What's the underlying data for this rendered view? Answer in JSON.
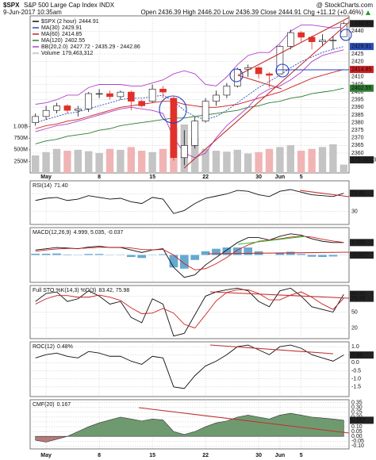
{
  "header": {
    "symbol": "$SPX",
    "name": "S&P 500 Large Cap Index INDX",
    "source": "@ StockCharts.com",
    "date": "9-Jun-2017 10:35am",
    "quote": "Open 2436.39 High 2446.20 Low 2436.39 Close 2444.91 Chg +11.12 (+0.46%)"
  },
  "chart_data": [
    {
      "type": "candlestick",
      "name": "$SPX (2 hour)",
      "categories": [
        null,
        "May",
        null,
        null,
        null,
        null,
        "8",
        null,
        null,
        null,
        null,
        "15",
        null,
        null,
        null,
        null,
        "22",
        null,
        null,
        null,
        null,
        "30",
        null,
        "Jun",
        null,
        "5",
        null,
        null,
        null,
        null
      ],
      "open": [
        2380,
        2384,
        2388,
        2391,
        2388,
        2389,
        2399,
        2399,
        2397,
        2400,
        2394,
        2394,
        2402,
        2396,
        2357,
        2365,
        2381,
        2394,
        2398,
        2404,
        2415,
        2416,
        2412,
        2412,
        2430,
        2439,
        2436,
        2433,
        2434,
        2436.39
      ],
      "high": [
        2386,
        2391,
        2393,
        2392,
        2391,
        2400,
        2402,
        2401,
        2401,
        2401,
        2395,
        2405,
        2404,
        2397,
        2375,
        2384,
        2396,
        2401,
        2406,
        2416,
        2418,
        2417,
        2413,
        2431,
        2441,
        2440,
        2437,
        2438,
        2437,
        2446.2
      ],
      "low": [
        2378,
        2382,
        2386,
        2386,
        2384,
        2387,
        2396,
        2395,
        2395,
        2388,
        2390,
        2393,
        2396,
        2355,
        2352,
        2363,
        2380,
        2391,
        2396,
        2403,
        2410,
        2409,
        2403,
        2412,
        2428,
        2433,
        2428,
        2430,
        2428,
        2436.39
      ],
      "close": [
        2384,
        2388,
        2391,
        2388,
        2389,
        2399,
        2399,
        2397,
        2400,
        2394,
        2391,
        2402,
        2400,
        2357,
        2365,
        2381,
        2394,
        2398,
        2404,
        2415,
        2416,
        2412,
        2411,
        2430,
        2439,
        2436,
        2433,
        2434,
        2434,
        2444.91
      ],
      "up_color": "#ffffff",
      "down_color": "#e0302a",
      "candle_stroke": "#111111",
      "box_color": "#222222",
      "ylim": [
        2347,
        2450
      ],
      "yticks": [
        2360,
        2365,
        2370,
        2375,
        2380,
        2385,
        2390,
        2395,
        2400,
        2405,
        2410,
        2420,
        2425,
        2440
      ],
      "grid": true,
      "series": [
        {
          "name": "MA(30)",
          "color": "#2a4cb8",
          "dash": "2,1.5",
          "value_box": true,
          "values": [
            2380,
            2382,
            2384,
            2386,
            2387,
            2389,
            2391,
            2393,
            2395,
            2396,
            2396,
            2397,
            2398,
            2394,
            2388,
            2384,
            2382,
            2384,
            2388,
            2393,
            2398,
            2403,
            2407,
            2411,
            2416,
            2420,
            2423,
            2426,
            2428,
            2429.91
          ]
        },
        {
          "name": "MA(60)",
          "color": "#cc2020",
          "value_box": true,
          "values": [
            2376,
            2378,
            2379,
            2381,
            2382,
            2384,
            2386,
            2388,
            2390,
            2391,
            2392,
            2393,
            2394,
            2394,
            2392,
            2391,
            2390,
            2390,
            2391,
            2392,
            2394,
            2396,
            2398,
            2400,
            2403,
            2406,
            2409,
            2411,
            2413,
            2414.85
          ]
        },
        {
          "name": "MA(120)",
          "color": "#2e7d32",
          "value_box": true,
          "values": [
            2366,
            2368,
            2369,
            2371,
            2372,
            2373,
            2375,
            2376,
            2378,
            2379,
            2380,
            2381,
            2382,
            2383,
            2383,
            2384,
            2385,
            2386,
            2387,
            2388,
            2390,
            2391,
            2393,
            2394,
            2396,
            2397,
            2399,
            2400,
            2401,
            2402.55
          ]
        },
        {
          "name": "BB(20,2.0)",
          "legend_value": "2427.72 - 2435.29 - 2442.86",
          "color": "#b040c8",
          "upper": [
            2392,
            2393,
            2395,
            2398,
            2398,
            2403,
            2405,
            2405,
            2405,
            2404,
            2404,
            2406,
            2408,
            2412,
            2414,
            2412,
            2405,
            2404,
            2410,
            2418,
            2424,
            2426,
            2426,
            2432,
            2440,
            2444,
            2444,
            2443,
            2442,
            2442.86
          ],
          "lower": [
            2374,
            2376,
            2378,
            2379,
            2381,
            2383,
            2385,
            2387,
            2389,
            2390,
            2389,
            2388,
            2386,
            2370,
            2360,
            2357,
            2360,
            2370,
            2378,
            2384,
            2390,
            2398,
            2402,
            2404,
            2408,
            2413,
            2420,
            2424,
            2426,
            2427.72
          ]
        }
      ],
      "volume": {
        "name": "Volume",
        "legend_value": "179,463,312",
        "axis": "y2",
        "up_color": "#c4c4c4",
        "down_color": "#f0b4b4",
        "values": [
          380000000,
          450000000,
          520000000,
          480000000,
          500000000,
          470000000,
          430000000,
          520000000,
          500000000,
          560000000,
          480000000,
          450000000,
          520000000,
          980000000,
          1050000000,
          760000000,
          520000000,
          480000000,
          460000000,
          500000000,
          420000000,
          450000000,
          520000000,
          560000000,
          600000000,
          480000000,
          520000000,
          560000000,
          620000000,
          179463312
        ]
      },
      "y2lim": [
        0,
        3400000000
      ],
      "y2ticks": [
        {
          "value": 250000000,
          "label": "250M"
        },
        {
          "value": 500000000,
          "label": "500M"
        },
        {
          "value": 750000000,
          "label": "750M"
        },
        {
          "value": 1000000000,
          "label": "1.00B"
        }
      ]
    },
    {
      "type": "line",
      "title": "RSI(14)",
      "legend_value": "71.40",
      "legend_box": true,
      "box_color": "#222222",
      "ylim": [
        0,
        100
      ],
      "yticks": [
        30,
        70
      ],
      "grid": true,
      "series": [
        {
          "color": "#111111",
          "values": [
            55,
            60,
            62,
            55,
            58,
            66,
            62,
            58,
            60,
            52,
            48,
            62,
            58,
            25,
            32,
            48,
            60,
            65,
            70,
            78,
            76,
            68,
            64,
            76,
            80,
            74,
            68,
            66,
            64,
            71.4
          ]
        }
      ]
    },
    {
      "type": "line",
      "title": "MACD(12,26,9)",
      "legend_value": "4.999, 5.035, -0.037",
      "box_color": "#222222",
      "ylim": [
        -11,
        11
      ],
      "yticks": [
        0
      ],
      "grid": true,
      "series": [
        {
          "style": "histogram",
          "color": "#4a9ac8",
          "value_box": true,
          "values": [
            0.5,
            0.5,
            0.6,
            0.2,
            -0.1,
            0.4,
            0.4,
            -0.1,
            -0.1,
            -0.8,
            -1.2,
            -0.1,
            0.3,
            -5,
            -5.5,
            -2,
            1.5,
            2.5,
            3,
            3,
            3,
            1.5,
            0,
            1,
            1.3,
            0.4,
            -0.7,
            -0.8,
            -0.6,
            -0.037
          ]
        },
        {
          "color": "#111111",
          "value_box": true,
          "values": [
            2,
            2.5,
            3,
            2.8,
            2.5,
            3.2,
            3.5,
            3,
            3,
            2,
            1,
            2,
            2.5,
            -5,
            -9,
            -8,
            -4,
            -1,
            2,
            5,
            7,
            7,
            6,
            7.5,
            8.5,
            8,
            6.5,
            5.5,
            5,
            4.999
          ]
        },
        {
          "color": "#cc2020",
          "values": [
            1.5,
            2,
            2.4,
            2.6,
            2.6,
            2.8,
            3.1,
            3.1,
            3.1,
            2.8,
            2.2,
            2.1,
            2.2,
            0,
            -3.5,
            -6,
            -5.5,
            -3.5,
            -1,
            2,
            4,
            5.5,
            6,
            6.5,
            7.2,
            7.6,
            7.2,
            6.3,
            5.6,
            5.035
          ]
        }
      ]
    },
    {
      "type": "line",
      "title": "Full STO %K(14,3) %D(3)",
      "legend_value": "83.42, 75.98",
      "box_color": "#222222",
      "ylim": [
        0,
        100
      ],
      "yticks": [
        20,
        50,
        80
      ],
      "grid": true,
      "series": [
        {
          "color": "#111111",
          "value_box": true,
          "values": [
            70,
            85,
            88,
            70,
            75,
            90,
            80,
            65,
            70,
            40,
            30,
            75,
            65,
            5,
            10,
            45,
            80,
            88,
            92,
            95,
            90,
            70,
            60,
            90,
            95,
            80,
            60,
            55,
            50,
            83.42
          ]
        },
        {
          "color": "#cc2020",
          "value_box": true,
          "values": [
            65,
            75,
            81,
            81,
            78,
            78,
            82,
            78,
            72,
            58,
            47,
            48,
            57,
            48,
            27,
            20,
            45,
            71,
            87,
            92,
            92,
            85,
            73,
            73,
            82,
            88,
            78,
            65,
            55,
            75.98
          ]
        }
      ]
    },
    {
      "type": "line",
      "title": "ROC(12)",
      "legend_value": "0.48%",
      "box_color": "#222222",
      "ylim": [
        -2.1,
        1.3
      ],
      "yticks": [
        -1.5,
        {
          "value": -1,
          "label": "-1.0"
        },
        -0.5,
        {
          "value": 0,
          "label": "0.0"
        },
        0.5,
        {
          "value": 1,
          "label": "1.0"
        }
      ],
      "grid": true,
      "series": [
        {
          "color": "#111111",
          "value_box": true,
          "values": [
            0.3,
            0.5,
            0.6,
            0.4,
            0.3,
            0.7,
            0.6,
            0.4,
            0.4,
            0.1,
            -0.1,
            0.4,
            0.3,
            -1.5,
            -1.6,
            -0.8,
            -0.2,
            0.1,
            0.5,
            1.0,
            1.1,
            0.8,
            0.5,
            1.0,
            1.1,
            0.9,
            0.5,
            0.3,
            0.1,
            0.48
          ]
        }
      ]
    },
    {
      "type": "area",
      "title": "CMF(20)",
      "legend_value": "0.167",
      "legend_box": true,
      "box_color": "#222222",
      "pos_color": "#6f9a6f",
      "neg_color": "#b57a7a",
      "ylim": [
        -0.13,
        0.38
      ],
      "yticks": [
        {
          "value": -0.1,
          "label": "-0.10"
        },
        -0.05,
        {
          "value": 0,
          "label": "0.00"
        },
        0.05,
        {
          "value": 0.1,
          "label": "0.10"
        },
        0.15,
        {
          "value": 0.2,
          "label": "0.20"
        },
        0.25,
        {
          "value": 0.3,
          "label": "0.30"
        },
        0.35
      ],
      "grid": true,
      "series": [
        {
          "color": "#333333",
          "values": [
            -0.04,
            -0.06,
            -0.03,
            0.0,
            0.05,
            0.1,
            0.14,
            0.17,
            0.2,
            0.18,
            0.16,
            0.18,
            0.17,
            0.05,
            0.02,
            0.05,
            0.1,
            0.14,
            0.16,
            0.2,
            0.22,
            0.2,
            0.18,
            0.22,
            0.24,
            0.22,
            0.2,
            0.19,
            0.18,
            0.167
          ]
        }
      ]
    }
  ]
}
